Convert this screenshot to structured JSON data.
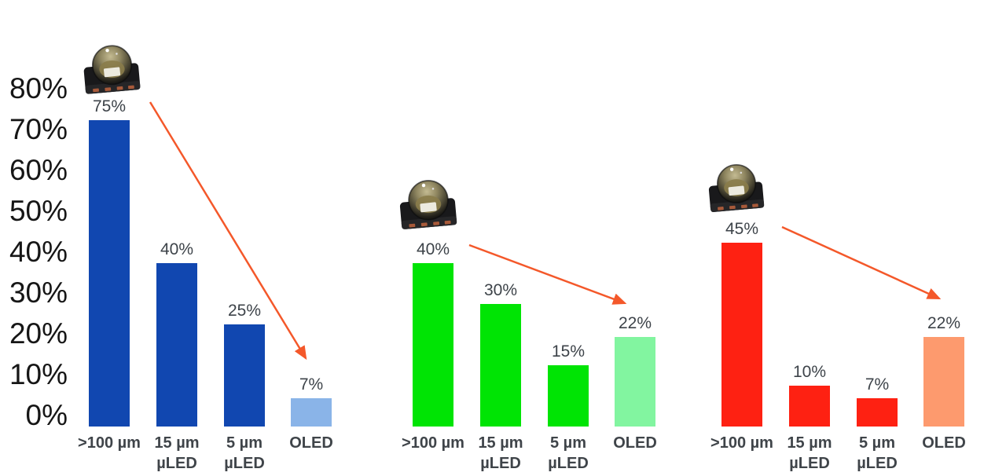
{
  "chart_data": {
    "type": "bar",
    "title": "",
    "ylim": [
      0,
      80
    ],
    "grid": false,
    "legend": "none",
    "arrow_color": "#f4582a",
    "yticks": [
      {
        "value": 0,
        "label": "0%"
      },
      {
        "value": 10,
        "label": "10%"
      },
      {
        "value": 20,
        "label": "20%"
      },
      {
        "value": 30,
        "label": "30%"
      },
      {
        "value": 40,
        "label": "40%"
      },
      {
        "value": 50,
        "label": "50%"
      },
      {
        "value": 60,
        "label": "60%"
      },
      {
        "value": 70,
        "label": "70%"
      },
      {
        "value": 80,
        "label": "80%"
      }
    ],
    "categories": [
      {
        "lines": [
          ">100 µm"
        ]
      },
      {
        "lines": [
          "15 µm",
          "µLED"
        ]
      },
      {
        "lines": [
          "5 µm",
          "µLED"
        ]
      },
      {
        "lines": [
          "OLED"
        ]
      }
    ],
    "groups": [
      {
        "name": "blue",
        "bar_color": "#1147b0",
        "oled_bar_color": "#8ab4e8",
        "values": [
          75,
          40,
          25,
          7
        ],
        "value_labels": [
          "75%",
          "40%",
          "25%",
          "7%"
        ],
        "icon": "led-package-photo",
        "arrow": {
          "from": ">100 µm",
          "to": "OLED"
        }
      },
      {
        "name": "green",
        "bar_color": "#00e404",
        "oled_bar_color": "#82f5a0",
        "values": [
          40,
          30,
          15,
          22
        ],
        "value_labels": [
          "40%",
          "30%",
          "15%",
          "22%"
        ],
        "icon": "led-package-photo",
        "arrow": {
          "from": ">100 µm",
          "to": "OLED"
        }
      },
      {
        "name": "red",
        "bar_color": "#fe2112",
        "oled_bar_color": "#fd9a6e",
        "values": [
          45,
          10,
          7,
          22
        ],
        "value_labels": [
          "45%",
          "10%",
          "7%",
          "22%"
        ],
        "icon": "led-package-photo",
        "arrow": {
          "from": ">100 µm",
          "to": "OLED"
        }
      }
    ]
  }
}
